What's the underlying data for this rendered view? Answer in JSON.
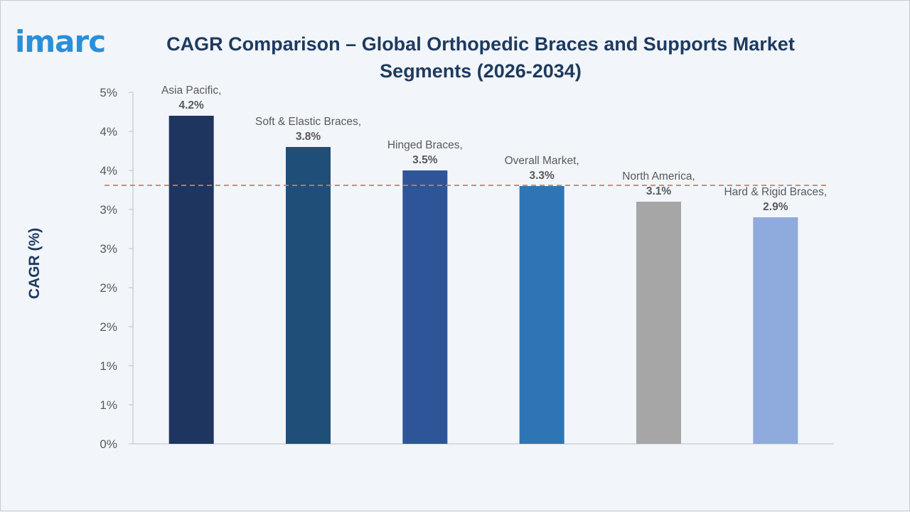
{
  "brand": {
    "logo_text": "imarc",
    "logo_color": "#2a8fd8"
  },
  "chart_data": {
    "type": "bar",
    "title": "CAGR Comparison – Global Orthopedic Braces and Supports Market Segments (2026-2034)",
    "ylabel": "CAGR (%)",
    "xlabel": "",
    "ylim": [
      0,
      4.5
    ],
    "yticks": [
      {
        "value": 0,
        "label": "0%"
      },
      {
        "value": 0.5,
        "label": "1%"
      },
      {
        "value": 1.0,
        "label": "1%"
      },
      {
        "value": 1.5,
        "label": "2%"
      },
      {
        "value": 2.0,
        "label": "2%"
      },
      {
        "value": 2.5,
        "label": "3%"
      },
      {
        "value": 3.0,
        "label": "3%"
      },
      {
        "value": 3.5,
        "label": "4%"
      },
      {
        "value": 4.0,
        "label": "4%"
      },
      {
        "value": 4.5,
        "label": "5%"
      }
    ],
    "categories": [
      "Asia Pacific",
      "Soft & Elastic Braces",
      "Hinged Braces",
      "Overall Market",
      "North America",
      "Hard & Rigid Braces"
    ],
    "values": [
      4.2,
      3.8,
      3.5,
      3.3,
      3.1,
      2.9
    ],
    "data_labels": [
      [
        "Asia Pacific,",
        "4.2%"
      ],
      [
        "Soft & Elastic Braces,",
        "3.8%"
      ],
      [
        "Hinged Braces,",
        "3.5%"
      ],
      [
        "Overall Market,",
        "3.3%"
      ],
      [
        "North America,",
        "3.1%"
      ],
      [
        "Hard & Rigid Braces,",
        "2.9%"
      ]
    ],
    "colors": [
      "#1e3560",
      "#1f4e79",
      "#2e5597",
      "#2e75b6",
      "#a6a6a6",
      "#8faadc"
    ],
    "reference_line": {
      "value": 3.3,
      "color": "#e07b39",
      "style": "dashed"
    },
    "grid": false,
    "legend": "none"
  }
}
